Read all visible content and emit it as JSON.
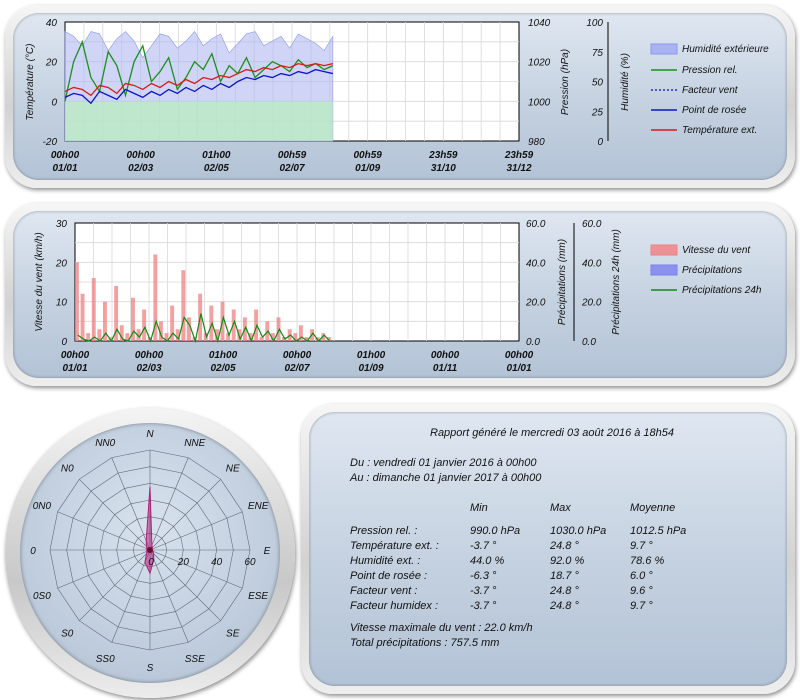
{
  "colors": {
    "humidity_fill": "#a9b3f3",
    "humidity_fill_low": "#b9ecbf",
    "pressure": "#1a8f1a",
    "windchill": "#1f2fcc",
    "dewpoint": "#0a14c8",
    "temp": "#d61a1a",
    "wind_speed": "#f08080",
    "precip": "#7b7ff0",
    "precip24": "#138a13",
    "rose_fill": "#b0207a"
  },
  "chart_data": [
    {
      "type": "line",
      "x_ticks": [
        [
          "00h00",
          "01/01"
        ],
        [
          "00h00",
          "02/03"
        ],
        [
          "01h00",
          "02/05"
        ],
        [
          "00h59",
          "02/07"
        ],
        [
          "00h59",
          "01/09"
        ],
        [
          "23h59",
          "31/10"
        ],
        [
          "23h59",
          "31/12"
        ]
      ],
      "ylabel_left": "Température (°C)",
      "ylim_left": [
        -20,
        40
      ],
      "yticks_left": [
        "40",
        "20",
        "0",
        "-20"
      ],
      "ylabel_mid": "Pression (hPa)",
      "ylim_mid": [
        980,
        1040
      ],
      "yticks_mid": [
        "1040",
        "1020",
        "1000",
        "980"
      ],
      "ylabel_right": "Humidité (%)",
      "ylim_right": [
        0,
        100
      ],
      "yticks_right": [
        "100",
        "75",
        "50",
        "25",
        "0"
      ],
      "grid": true,
      "legend": [
        "Humidité extérieure",
        "Pression rel.",
        "Facteur vent",
        "Point de rosée",
        "Température ext."
      ],
      "data_fraction_of_year": 0.59,
      "series": [
        {
          "name": "Humidité extérieure",
          "axis": "right",
          "values": [
            92,
            88,
            80,
            92,
            90,
            76,
            86,
            92,
            84,
            70,
            80,
            90,
            88,
            78,
            84,
            92,
            80,
            86,
            90,
            74,
            82,
            90,
            92,
            80,
            84,
            88,
            78,
            90,
            86,
            82,
            76,
            88
          ]
        },
        {
          "name": "Pression rel.",
          "axis": "mid",
          "values": [
            1000,
            1020,
            1030,
            1012,
            1005,
            1025,
            1018,
            1003,
            1020,
            1028,
            1010,
            1015,
            1022,
            1006,
            1012,
            1020,
            1016,
            1024,
            1010,
            1018,
            1014,
            1022,
            1012,
            1016,
            1020,
            1018,
            1015,
            1021,
            1017,
            1019,
            1016,
            1018
          ]
        },
        {
          "name": "Point de rosée",
          "axis": "left",
          "values": [
            2,
            4,
            3,
            -1,
            5,
            3,
            1,
            6,
            4,
            2,
            5,
            3,
            6,
            4,
            7,
            5,
            8,
            6,
            9,
            7,
            10,
            12,
            11,
            13,
            12,
            14,
            13,
            15,
            14,
            16,
            15,
            14
          ]
        },
        {
          "name": "Température ext.",
          "axis": "left",
          "values": [
            5,
            7,
            6,
            3,
            8,
            7,
            4,
            9,
            8,
            6,
            9,
            7,
            10,
            8,
            11,
            9,
            12,
            11,
            13,
            12,
            14,
            16,
            15,
            17,
            16,
            18,
            17,
            19,
            18,
            19,
            18,
            19
          ]
        }
      ]
    },
    {
      "type": "bar",
      "x_ticks": [
        [
          "00h00",
          "01/01"
        ],
        [
          "00h00",
          "02/03"
        ],
        [
          "01h00",
          "02/05"
        ],
        [
          "00h00",
          "02/07"
        ],
        [
          "01h00",
          "01/09"
        ],
        [
          "00h00",
          "01/11"
        ],
        [
          "00h00",
          "01/01"
        ]
      ],
      "ylabel_left": "Vitesse du vent (km/h)",
      "ylim_left": [
        0,
        30
      ],
      "yticks_left": [
        "30",
        "20",
        "10",
        "0"
      ],
      "ylabel_mid": "Précipitations (mm)",
      "ylim_mid": [
        0,
        60
      ],
      "yticks_mid": [
        "60.0",
        "40.0",
        "20.0",
        "0.0"
      ],
      "ylabel_right": "Précipitations 24h (mm)",
      "ylim_right": [
        0,
        60
      ],
      "yticks_right": [
        "60.0",
        "40.0",
        "20.0",
        "0.0"
      ],
      "grid": true,
      "legend": [
        "Vitesse du vent",
        "Précipitations",
        "Précipitations 24h"
      ],
      "series": [
        {
          "name": "Vitesse du vent",
          "values": [
            20,
            12,
            2,
            16,
            3,
            10,
            1,
            14,
            4,
            2,
            11,
            3,
            8,
            1,
            22,
            5,
            2,
            9,
            3,
            18,
            6,
            1,
            12,
            2,
            9,
            3,
            10,
            2,
            8,
            3,
            6,
            2,
            8,
            1,
            5,
            2,
            6,
            1,
            3,
            2,
            4,
            1,
            3,
            1,
            2,
            1
          ]
        },
        {
          "name": "Précipitations 24h",
          "values": [
            3,
            1,
            0,
            2,
            0,
            4,
            0,
            6,
            1,
            0,
            5,
            2,
            7,
            0,
            10,
            2,
            0,
            4,
            1,
            12,
            8,
            0,
            14,
            2,
            9,
            0,
            12,
            3,
            10,
            1,
            7,
            0,
            8,
            2,
            5,
            0,
            6,
            1,
            3,
            0,
            2,
            0,
            4,
            0,
            3,
            0
          ]
        }
      ]
    },
    {
      "type": "radar",
      "directions": [
        "N",
        "NNE",
        "NE",
        "ENE",
        "E",
        "ESE",
        "SE",
        "SSE",
        "S",
        "SS0",
        "S0",
        "0S0",
        "0",
        "0N0",
        "N0",
        "NN0"
      ],
      "rlim": [
        0,
        60
      ],
      "rticks": [
        "0",
        "20",
        "40",
        "60"
      ],
      "values": [
        38,
        3,
        2,
        1,
        1,
        2,
        3,
        6,
        14,
        8,
        3,
        2,
        2,
        2,
        3,
        6
      ]
    }
  ],
  "report": {
    "title": "Rapport généré le mercredi 03 août 2016 à 18h54",
    "from": "Du : vendredi 01 janvier 2016 à 00h00",
    "to": "Au : dimanche 01 janvier 2017 à 00h00",
    "headers": [
      "Min",
      "Max",
      "Moyenne"
    ],
    "rows": [
      {
        "label": "Pression rel. :",
        "min": "990.0 hPa",
        "max": "1030.0 hPa",
        "avg": "1012.5 hPa"
      },
      {
        "label": "Température ext. :",
        "min": "-3.7 °",
        "max": "24.8 °",
        "avg": "9.7 °"
      },
      {
        "label": "Humidité ext. :",
        "min": "44.0 %",
        "max": "92.0 %",
        "avg": "78.6 %"
      },
      {
        "label": "Point de rosée :",
        "min": "-6.3 °",
        "max": "18.7 °",
        "avg": "6.0 °"
      },
      {
        "label": "Facteur vent :",
        "min": "-3.7 °",
        "max": "24.8 °",
        "avg": "9.6 °"
      },
      {
        "label": "Facteur humidex :",
        "min": "-3.7 °",
        "max": "24.8 °",
        "avg": "9.7 °"
      }
    ],
    "max_wind": "Vitesse maximale du vent : 22.0 km/h",
    "total_precip": "Total précipitations : 757.5 mm"
  }
}
